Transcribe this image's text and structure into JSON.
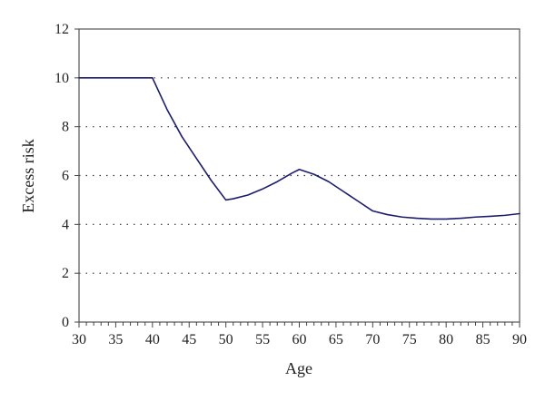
{
  "chart_data": {
    "type": "line",
    "title": "",
    "xlabel": "Age",
    "ylabel": "Excess risk",
    "xlim": [
      30,
      90
    ],
    "ylim": [
      0,
      12
    ],
    "x_ticks": [
      30,
      35,
      40,
      45,
      50,
      55,
      60,
      65,
      70,
      75,
      80,
      85,
      90
    ],
    "y_ticks": [
      0,
      2,
      4,
      6,
      8,
      10,
      12
    ],
    "x_minor_step": 1,
    "grid": "horizontal dotted",
    "legend": "none",
    "series": [
      {
        "color": "#1c1c6e",
        "points": [
          [
            30,
            10.0
          ],
          [
            40,
            10.0
          ],
          [
            42,
            8.7
          ],
          [
            44,
            7.6
          ],
          [
            46,
            6.7
          ],
          [
            48,
            5.8
          ],
          [
            50,
            5.0
          ],
          [
            51,
            5.05
          ],
          [
            53,
            5.2
          ],
          [
            55,
            5.45
          ],
          [
            57,
            5.75
          ],
          [
            59,
            6.1
          ],
          [
            60,
            6.25
          ],
          [
            62,
            6.05
          ],
          [
            64,
            5.75
          ],
          [
            66,
            5.35
          ],
          [
            68,
            4.95
          ],
          [
            70,
            4.55
          ],
          [
            72,
            4.4
          ],
          [
            74,
            4.3
          ],
          [
            76,
            4.25
          ],
          [
            78,
            4.22
          ],
          [
            80,
            4.22
          ],
          [
            82,
            4.25
          ],
          [
            84,
            4.3
          ],
          [
            86,
            4.33
          ],
          [
            88,
            4.37
          ],
          [
            90,
            4.44
          ]
        ]
      }
    ]
  }
}
